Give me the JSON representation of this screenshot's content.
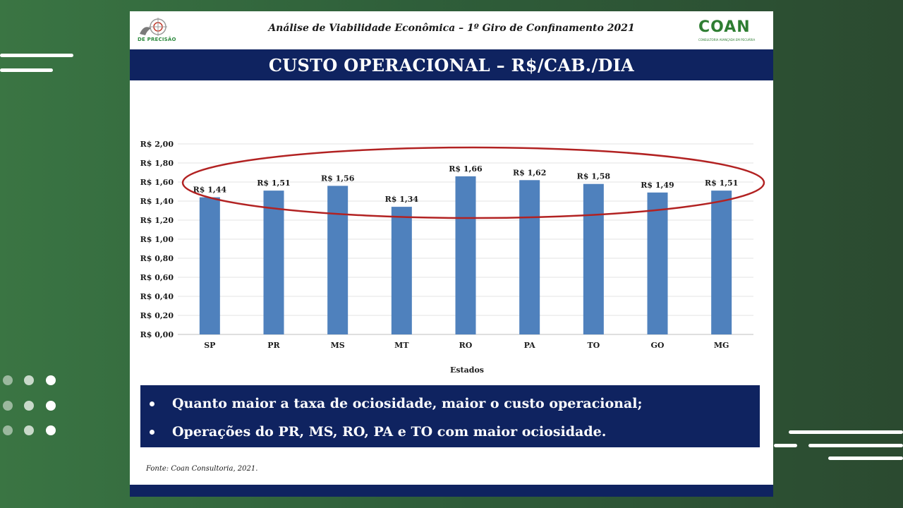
{
  "slide": {
    "header_title": "Análise de Viabilidade Econômica – 1º Giro de Confinamento 2021",
    "title": "CUSTO OPERACIONAL – R$/CAB./DIA",
    "bullets": [
      "Quanto maior a taxa de ociosidade, maior o custo operacional;",
      "Operações do PR, MS, RO, PA e TO com maior ociosidade."
    ],
    "source": "Fonte: Coan Consultoria, 2021.",
    "logo_left_text": "DE PRECISÃO",
    "logo_right_name": "COAN",
    "logo_right_sub": "CONSULTORIA AVANÇADA EM PECUÁRIA"
  },
  "chart_data": {
    "type": "bar",
    "categories": [
      "SP",
      "PR",
      "MS",
      "MT",
      "RO",
      "PA",
      "TO",
      "GO",
      "MG"
    ],
    "values": [
      1.44,
      1.51,
      1.56,
      1.34,
      1.66,
      1.62,
      1.58,
      1.49,
      1.51
    ],
    "data_labels": [
      "R$ 1,44",
      "R$ 1,51",
      "R$ 1,56",
      "R$ 1,34",
      "R$ 1,66",
      "R$ 1,62",
      "R$ 1,58",
      "R$ 1,49",
      "R$ 1,51"
    ],
    "yticks": [
      0,
      0.2,
      0.4,
      0.6,
      0.8,
      1.0,
      1.2,
      1.4,
      1.6,
      1.8,
      2.0
    ],
    "ytick_labels": [
      "R$ 0,00",
      "R$ 0,20",
      "R$ 0,40",
      "R$ 0,60",
      "R$ 0,80",
      "R$ 1,00",
      "R$ 1,20",
      "R$ 1,40",
      "R$ 1,60",
      "R$ 1,80",
      "R$ 2,00"
    ],
    "ylim": [
      0,
      2.0
    ],
    "xlabel": "Estados",
    "ylabel": "",
    "grid": true,
    "colors": {
      "bar": "#4f81bd",
      "highlight_ellipse": "#b22222",
      "band": "#0f2360"
    }
  }
}
